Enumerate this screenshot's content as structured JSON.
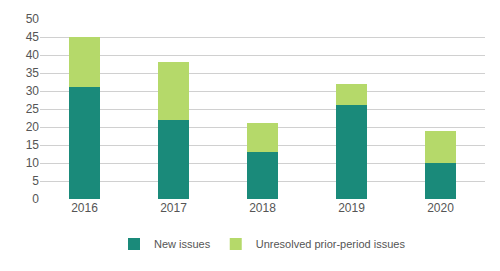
{
  "chart_data": {
    "type": "bar",
    "stacked": true,
    "categories": [
      "2016",
      "2017",
      "2018",
      "2019",
      "2020"
    ],
    "series": [
      {
        "name": "New issues",
        "color": "#1a8a7a",
        "values": [
          31,
          22,
          13,
          26,
          10
        ]
      },
      {
        "name": "Unresolved prior-period issues",
        "color": "#b5d96a",
        "values": [
          14,
          16,
          8,
          6,
          9
        ]
      }
    ],
    "ylim": [
      0,
      50
    ],
    "yticks": [
      0,
      5,
      10,
      15,
      20,
      25,
      30,
      35,
      40,
      45,
      50
    ],
    "grid": true,
    "legend": "bottom"
  }
}
